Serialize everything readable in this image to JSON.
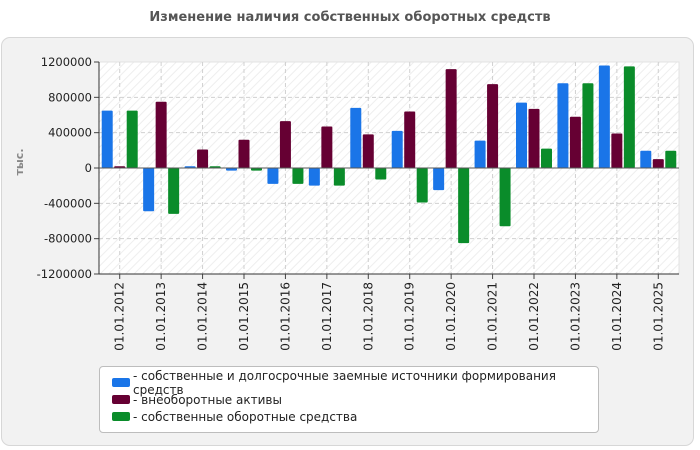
{
  "title": "Изменение наличия собственных оборотных средств",
  "chart_data": {
    "type": "bar",
    "title": "Изменение наличия собственных оборотных средств",
    "ylabel": "тыс.",
    "xlabel": "",
    "ylim": [
      -1200000,
      1200000
    ],
    "yticks": [
      1200000,
      800000,
      400000,
      0,
      -400000,
      -800000,
      -1200000
    ],
    "ytick_labels": [
      "1200000",
      "800000",
      "400000",
      "0",
      "-400000",
      "-800000",
      "-1200000"
    ],
    "grid": true,
    "categories": [
      "01.01.2012",
      "01.01.2013",
      "01.01.2014",
      "01.01.2015",
      "01.01.2016",
      "01.01.2017",
      "01.01.2018",
      "01.01.2019",
      "01.01.2020",
      "01.01.2021",
      "01.01.2022",
      "01.01.2023",
      "01.01.2024",
      "01.01.2025"
    ],
    "series": [
      {
        "name": "собственные и долгосрочные заемные источники формирования средств",
        "color": "#1a75e8",
        "values": [
          650000,
          -490000,
          20000,
          -30000,
          -180000,
          -200000,
          680000,
          420000,
          -250000,
          310000,
          740000,
          960000,
          1160000,
          195000
        ]
      },
      {
        "name": "внеоборотные активы",
        "color": "#660033",
        "values": [
          20000,
          750000,
          210000,
          320000,
          530000,
          470000,
          380000,
          640000,
          1120000,
          950000,
          670000,
          580000,
          390000,
          100000
        ]
      },
      {
        "name": "собственные оборотные средства",
        "color": "#0a8c2a",
        "values": [
          650000,
          -520000,
          20000,
          -30000,
          -180000,
          -200000,
          -130000,
          -390000,
          -850000,
          -660000,
          220000,
          960000,
          1150000,
          195000
        ]
      }
    ]
  },
  "legend": {
    "items": [
      "- собственные и долгосрочные заемные источники формирования средств",
      "- внеоборотные активы",
      "- собственные оборотные средства"
    ]
  }
}
